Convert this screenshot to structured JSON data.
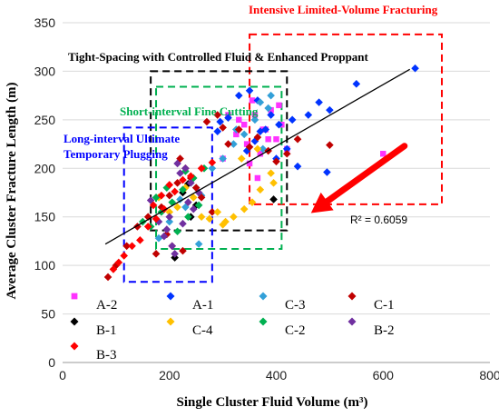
{
  "chart_data": {
    "type": "scatter",
    "xlabel": "Single Cluster Fluid Volume (m³)",
    "ylabel": "Average Cluster Fracture Length (m)",
    "xlim": [
      0,
      800
    ],
    "ylim": [
      0,
      350
    ],
    "x_ticks": [
      "0",
      "200",
      "400",
      "600",
      "800"
    ],
    "y_ticks": [
      "0",
      "50",
      "100",
      "150",
      "200",
      "250",
      "300",
      "350"
    ],
    "grid": true,
    "trendline": {
      "x": [
        80,
        650
      ],
      "y": [
        122,
        302
      ]
    },
    "r_squared": "R² = 0.6059",
    "boxes": [
      {
        "label": "Intensive Limited-Volume Fracturing",
        "color": "#ff0000",
        "x": [
          350,
          710
        ],
        "y": [
          163,
          338
        ]
      },
      {
        "label": "Tight-Spacing with Controlled Fluid & Enhanced Proppant",
        "color": "#000000",
        "x": [
          165,
          420
        ],
        "y": [
          136,
          300
        ]
      },
      {
        "label": "Short-interval Fine Cutting",
        "color": "#00b050",
        "x": [
          175,
          410
        ],
        "y": [
          117,
          284
        ]
      },
      {
        "label": "Long-interval Ultimate Temporary Plugging",
        "color": "#0000ff",
        "x": [
          115,
          280
        ],
        "y": [
          83,
          242
        ]
      }
    ],
    "annotation_arrow": {
      "from": [
        640,
        223
      ],
      "to": [
        465,
        154
      ],
      "color": "#ff0000"
    },
    "series": [
      {
        "name": "A-2",
        "color": "#ff33ff",
        "marker": "square",
        "x": [
          360,
          380,
          400,
          330,
          345,
          370,
          390,
          410,
          420,
          600,
          350,
          325,
          300,
          365,
          385,
          405,
          340,
          310,
          355,
          375
        ],
        "y": [
          255,
          240,
          230,
          250,
          225,
          215,
          260,
          245,
          220,
          215,
          205,
          235,
          210,
          190,
          230,
          265,
          245,
          255,
          270,
          240
        ]
      },
      {
        "name": "A-1",
        "color": "#0033ff",
        "marker": "diamond",
        "x": [
          660,
          550,
          500,
          480,
          460,
          430,
          405,
          390,
          370,
          350,
          330,
          310,
          295,
          290,
          360,
          380,
          420,
          400,
          440,
          495,
          345,
          365
        ],
        "y": [
          303,
          287,
          260,
          268,
          255,
          250,
          245,
          255,
          238,
          280,
          275,
          252,
          248,
          238,
          228,
          240,
          220,
          210,
          202,
          196,
          218,
          270
        ],
        "x_count": 22
      },
      {
        "name": "C-3",
        "color": "#33a0d8",
        "marker": "diamond",
        "x": [
          390,
          370,
          360,
          340,
          320,
          300,
          280,
          260,
          240,
          220,
          255,
          200,
          230,
          180,
          250,
          325,
          385,
          375
        ],
        "y": [
          275,
          268,
          250,
          235,
          225,
          210,
          200,
          172,
          150,
          168,
          122,
          145,
          160,
          128,
          180,
          240,
          262,
          220
        ]
      },
      {
        "name": "C-1",
        "color": "#c00000",
        "marker": "diamond",
        "x": [
          500,
          440,
          420,
          400,
          385,
          365,
          350,
          330,
          310,
          290,
          270,
          250,
          230,
          215,
          200,
          185,
          160,
          140,
          120,
          100,
          85,
          220,
          240,
          260,
          280,
          300,
          205,
          225,
          195,
          175
        ],
        "y": [
          224,
          230,
          215,
          207,
          218,
          232,
          222,
          240,
          225,
          255,
          248,
          180,
          200,
          185,
          172,
          160,
          150,
          140,
          120,
          100,
          88,
          210,
          190,
          170,
          155,
          242,
          120,
          115,
          132,
          112
        ]
      },
      {
        "name": "B-1",
        "color": "#000000",
        "marker": "diamond",
        "x": [
          395,
          235,
          210,
          240,
          225,
          250
        ],
        "y": [
          168,
          184,
          108,
          150,
          175,
          162
        ]
      },
      {
        "name": "C-4",
        "color": "#ffc000",
        "marker": "diamond",
        "x": [
          390,
          370,
          355,
          340,
          320,
          305,
          290,
          275,
          260,
          245,
          230,
          215,
          200,
          180,
          300,
          335,
          365,
          395
        ],
        "y": [
          195,
          178,
          165,
          158,
          150,
          145,
          155,
          148,
          150,
          170,
          180,
          160,
          155,
          170,
          142,
          210,
          220,
          185
        ]
      },
      {
        "name": "C-2",
        "color": "#00b050",
        "marker": "diamond",
        "x": [
          185,
          205,
          225,
          245,
          265,
          150,
          165,
          195,
          215,
          235,
          255,
          175,
          230
        ],
        "y": [
          155,
          165,
          178,
          190,
          200,
          145,
          140,
          180,
          135,
          150,
          162,
          170,
          197
        ]
      },
      {
        "name": "B-2",
        "color": "#7030a0",
        "marker": "diamond",
        "x": [
          180,
          200,
          220,
          240,
          255,
          215,
          235,
          190,
          205,
          165,
          225,
          245,
          195,
          210,
          230
        ],
        "y": [
          145,
          150,
          195,
          185,
          175,
          205,
          165,
          130,
          120,
          167,
          143,
          158,
          137,
          112,
          200
        ]
      },
      {
        "name": "B-3",
        "color": "#ff0000",
        "marker": "diamond",
        "x": [
          95,
          105,
          115,
          130,
          145,
          160,
          175,
          190,
          210,
          225,
          240,
          260,
          280,
          200,
          185,
          170
        ],
        "y": [
          96,
          103,
          110,
          120,
          126,
          140,
          148,
          158,
          176,
          188,
          192,
          200,
          206,
          183,
          172,
          162
        ]
      }
    ]
  },
  "annotations": {
    "intensive": "Intensive Limited-Volume Fracturing",
    "tight": "Tight-Spacing with Controlled Fluid & Enhanced Proppant",
    "short": "Short-interval Fine Cutting",
    "long_line1": "Long-interval Ultimate",
    "long_line2": "Temporary Plugging"
  },
  "legend": [
    {
      "name": "A-2",
      "color": "#ff33ff",
      "marker": "square"
    },
    {
      "name": "A-1",
      "color": "#0033ff",
      "marker": "diamond"
    },
    {
      "name": "C-3",
      "color": "#33a0d8",
      "marker": "diamond"
    },
    {
      "name": "C-1",
      "color": "#c00000",
      "marker": "diamond"
    },
    {
      "name": "B-1",
      "color": "#000000",
      "marker": "diamond"
    },
    {
      "name": "C-4",
      "color": "#ffc000",
      "marker": "diamond"
    },
    {
      "name": "C-2",
      "color": "#00b050",
      "marker": "diamond"
    },
    {
      "name": "B-2",
      "color": "#7030a0",
      "marker": "diamond"
    },
    {
      "name": "B-3",
      "color": "#ff0000",
      "marker": "diamond"
    }
  ]
}
